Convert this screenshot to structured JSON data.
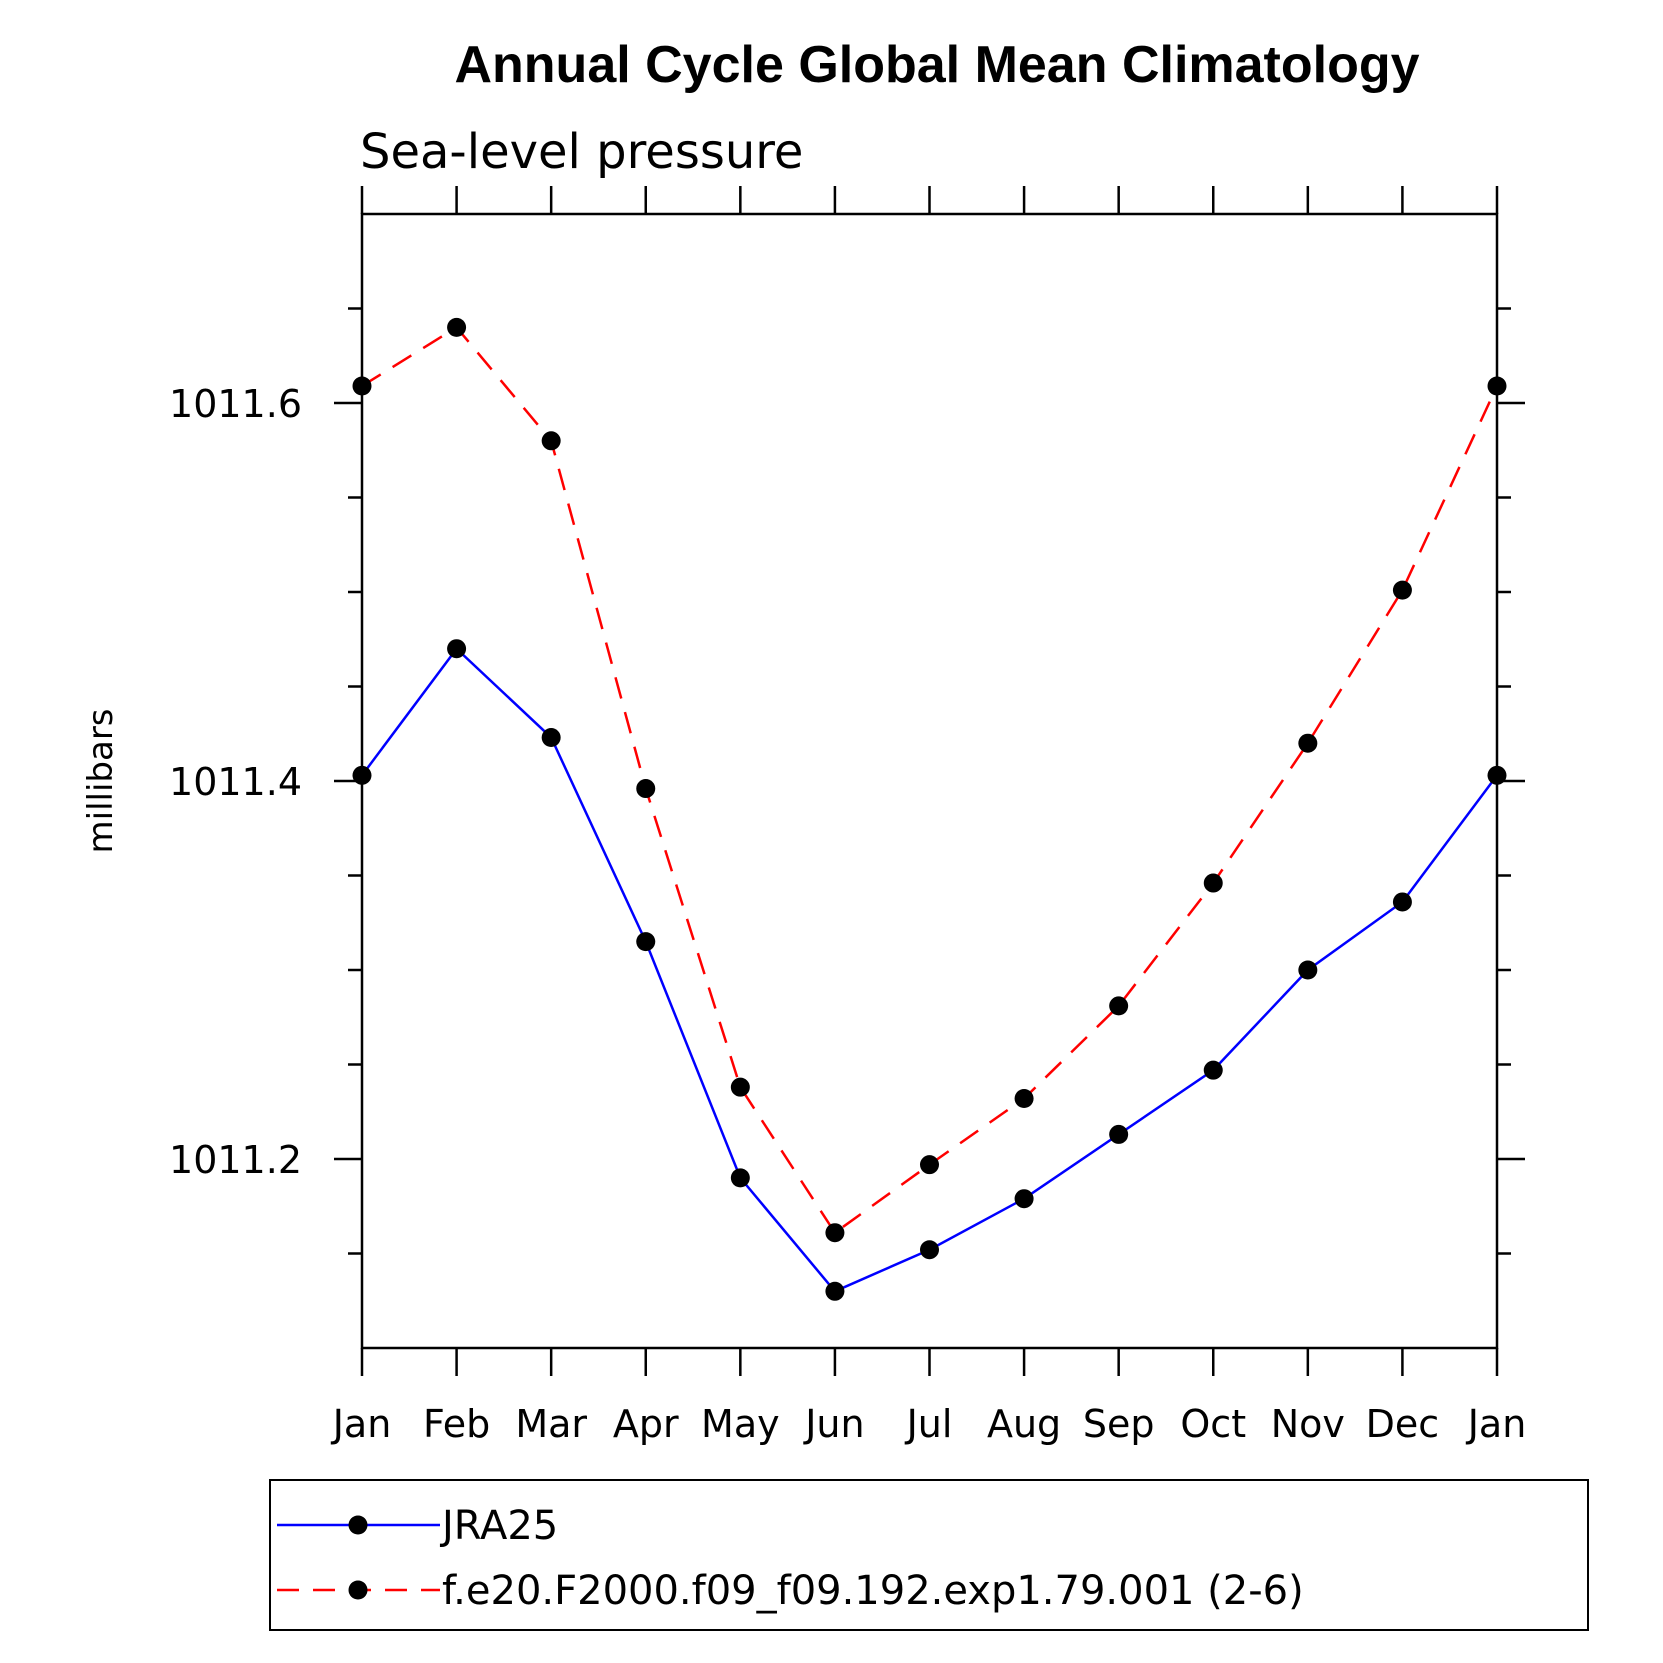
{
  "chart_data": {
    "type": "line",
    "title": "Annual Cycle Global Mean Climatology",
    "subtitle": "Sea-level pressure",
    "xlabel": "",
    "ylabel": "millibars",
    "categories": [
      "Jan",
      "Feb",
      "Mar",
      "Apr",
      "May",
      "Jun",
      "Jul",
      "Aug",
      "Sep",
      "Oct",
      "Nov",
      "Dec",
      "Jan"
    ],
    "ylim": [
      1011.1,
      1011.7
    ],
    "yticks": [
      1011.2,
      1011.4,
      1011.6
    ],
    "ytick_labels": [
      "1011.2",
      "1011.4",
      "1011.6"
    ],
    "legend_position": "bottom",
    "series": [
      {
        "name": "JRA25",
        "color": "#0000ff",
        "line_style": "solid",
        "marker": "filled-circle",
        "values": [
          1011.403,
          1011.47,
          1011.423,
          1011.315,
          1011.19,
          1011.13,
          1011.152,
          1011.179,
          1011.213,
          1011.247,
          1011.3,
          1011.336,
          1011.403
        ]
      },
      {
        "name": "f.e20.F2000.f09_f09.192.exp1.79.001 (2-6)",
        "color": "#ff0000",
        "line_style": "dashed",
        "marker": "filled-circle",
        "values": [
          1011.609,
          1011.64,
          1011.58,
          1011.396,
          1011.238,
          1011.161,
          1011.197,
          1011.232,
          1011.281,
          1011.346,
          1011.42,
          1011.501,
          1011.609
        ]
      }
    ]
  }
}
